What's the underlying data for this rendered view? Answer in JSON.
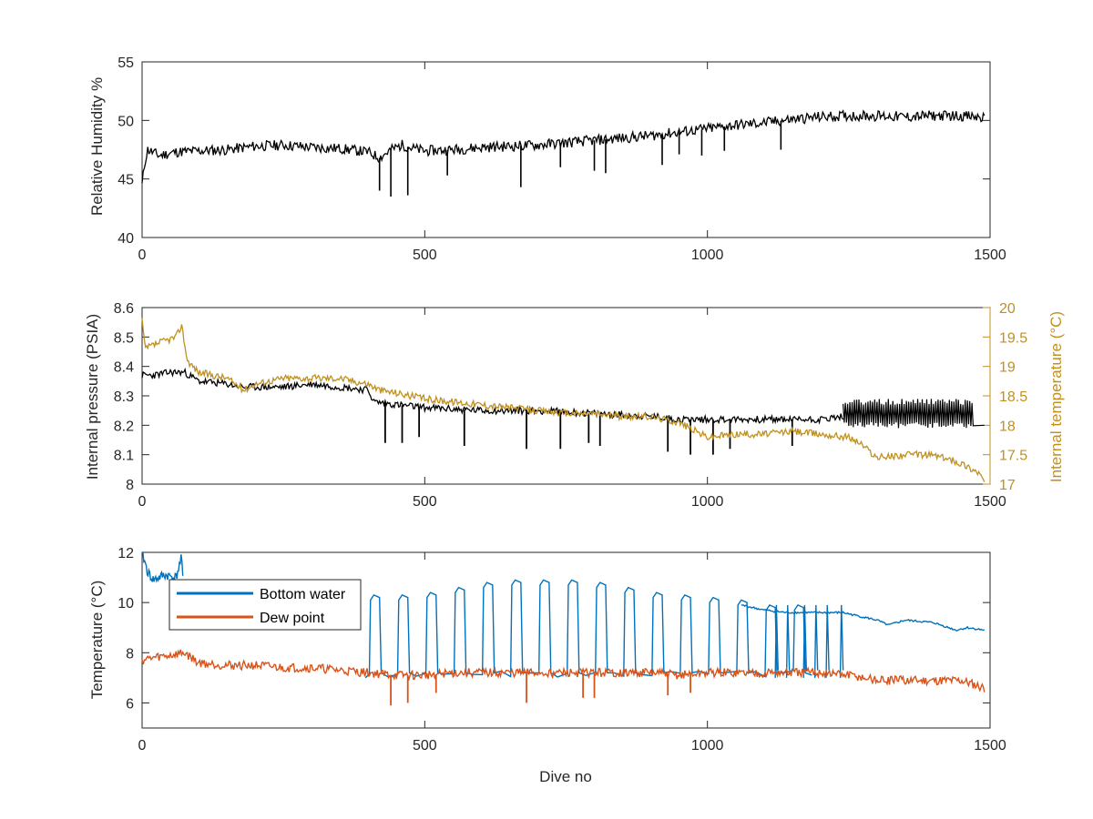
{
  "chart_data": [
    {
      "type": "line",
      "title": "",
      "xlabel": "",
      "ylabel": "Relative Humidity %",
      "xlim": [
        0,
        1500
      ],
      "ylim": [
        40,
        55
      ],
      "xticks": [
        "0",
        "500",
        "1000",
        "1500"
      ],
      "yticks": [
        "40",
        "45",
        "50",
        "55"
      ],
      "colors": {
        "rh": "#000000"
      },
      "series": [
        {
          "key": "rh",
          "x": [
            0,
            5,
            10,
            30,
            60,
            100,
            150,
            200,
            250,
            300,
            350,
            400,
            420,
            440,
            460,
            480,
            500,
            550,
            600,
            650,
            700,
            750,
            800,
            850,
            900,
            950,
            1000,
            1050,
            1100,
            1150,
            1200,
            1250,
            1300,
            1350,
            1400,
            1450,
            1490
          ],
          "y": [
            44.5,
            46.5,
            47.5,
            47.0,
            47.3,
            47.4,
            47.5,
            47.8,
            47.9,
            47.7,
            47.6,
            47.3,
            46.8,
            47.5,
            47.9,
            47.6,
            47.4,
            47.5,
            47.7,
            47.8,
            47.9,
            48.1,
            48.3,
            48.5,
            48.7,
            49.0,
            49.3,
            49.6,
            49.8,
            50.1,
            50.3,
            50.4,
            50.4,
            50.3,
            50.4,
            50.4,
            50.2
          ]
        }
      ],
      "dips": {
        "key": "rh",
        "x": [
          420,
          440,
          470,
          540,
          670,
          740,
          800,
          820,
          920,
          950,
          990,
          1030,
          1130
        ],
        "y": [
          44.0,
          43.5,
          43.6,
          45.3,
          44.3,
          46.0,
          45.7,
          45.5,
          46.2,
          47.1,
          47.0,
          47.4,
          47.5
        ]
      }
    },
    {
      "type": "line",
      "title": "",
      "xlabel": "",
      "ylabel": "Internal pressure (PSIA)",
      "y2label": "Internal temperature (°C)",
      "xlim": [
        0,
        1500
      ],
      "ylim": [
        8,
        8.6
      ],
      "y2lim": [
        17,
        20
      ],
      "xticks": [
        "0",
        "500",
        "1000",
        "1500"
      ],
      "yticks": [
        "8",
        "8.1",
        "8.2",
        "8.3",
        "8.4",
        "8.5",
        "8.6"
      ],
      "y2ticks": [
        "17",
        "17.5",
        "18",
        "18.5",
        "19",
        "19.5",
        "20"
      ],
      "colors": {
        "pressure": "#000000",
        "temperature": "#C09020",
        "temperature_axis": "#C09020"
      },
      "series": [
        {
          "key": "pressure",
          "axis": "left",
          "x": [
            0,
            20,
            50,
            75,
            100,
            150,
            180,
            250,
            300,
            350,
            400,
            410,
            450,
            500,
            600,
            700,
            800,
            900,
            950,
            1000,
            1100,
            1200,
            1240,
            1250,
            1300,
            1400,
            1470,
            1490
          ],
          "y": [
            8.37,
            8.37,
            8.38,
            8.38,
            8.35,
            8.34,
            8.33,
            8.33,
            8.34,
            8.33,
            8.32,
            8.28,
            8.27,
            8.26,
            8.25,
            8.25,
            8.24,
            8.23,
            8.22,
            8.22,
            8.22,
            8.22,
            8.23,
            8.26,
            8.25,
            8.25,
            8.24,
            8.2
          ]
        },
        {
          "key": "temperature",
          "axis": "right",
          "x": [
            0,
            5,
            30,
            60,
            70,
            80,
            100,
            150,
            180,
            200,
            250,
            300,
            350,
            400,
            420,
            450,
            500,
            550,
            600,
            650,
            700,
            750,
            800,
            850,
            900,
            950,
            1000,
            1050,
            1100,
            1150,
            1200,
            1250,
            1270,
            1300,
            1350,
            1400,
            1450,
            1480,
            1490
          ],
          "y": [
            19.8,
            19.3,
            19.4,
            19.5,
            19.7,
            19.1,
            18.9,
            18.8,
            18.6,
            18.7,
            18.8,
            18.8,
            18.8,
            18.7,
            18.6,
            18.55,
            18.45,
            18.4,
            18.35,
            18.3,
            18.25,
            18.2,
            18.2,
            18.15,
            18.15,
            18.05,
            17.8,
            17.85,
            17.85,
            17.9,
            17.85,
            17.8,
            17.7,
            17.45,
            17.5,
            17.5,
            17.35,
            17.2,
            17.05
          ]
        }
      ],
      "dips": {
        "key": "pressure",
        "x": [
          430,
          460,
          490,
          570,
          680,
          740,
          790,
          810,
          930,
          970,
          1010,
          1040,
          1150
        ],
        "y": [
          8.14,
          8.14,
          8.16,
          8.13,
          8.12,
          8.12,
          8.14,
          8.13,
          8.11,
          8.1,
          8.1,
          8.12,
          8.13
        ]
      },
      "annotations": [
        {
          "key": "pressure",
          "text": "",
          "kind": "oscillation",
          "x_range": [
            1240,
            1470
          ],
          "low": 8.19,
          "high": 8.29
        }
      ]
    },
    {
      "type": "line",
      "title": "",
      "xlabel": "Dive no",
      "ylabel": "Temperature (°C)",
      "xlim": [
        0,
        1500
      ],
      "ylim": [
        5,
        12
      ],
      "xticks": [
        "0",
        "500",
        "1000",
        "1500"
      ],
      "yticks": [
        "6",
        "8",
        "10",
        "12"
      ],
      "colors": {
        "bottom": "#0072BD",
        "dew": "#D95319"
      },
      "legend": {
        "placement": "top-left",
        "entries": [
          "Bottom water",
          "Dew point"
        ]
      },
      "series": [
        {
          "key": "bottom",
          "name": "Bottom water",
          "x": [
            0,
            10,
            20,
            40,
            60,
            70,
            72
          ],
          "y": [
            12.0,
            11.2,
            10.9,
            11.1,
            11.0,
            11.8,
            10.9
          ]
        },
        {
          "key": "dew",
          "name": "Dew point",
          "x": [
            0,
            20,
            50,
            75,
            100,
            150,
            200,
            250,
            300,
            350,
            400,
            450,
            500,
            550,
            600,
            650,
            700,
            750,
            800,
            850,
            900,
            950,
            1000,
            1050,
            1100,
            1150,
            1200,
            1250,
            1300,
            1350,
            1400,
            1450,
            1490
          ],
          "y": [
            7.7,
            7.8,
            7.9,
            8.0,
            7.6,
            7.5,
            7.5,
            7.4,
            7.4,
            7.3,
            7.2,
            7.1,
            7.1,
            7.2,
            7.2,
            7.2,
            7.2,
            7.2,
            7.2,
            7.2,
            7.2,
            7.1,
            7.2,
            7.2,
            7.2,
            7.2,
            7.2,
            7.1,
            6.9,
            6.9,
            6.9,
            6.9,
            6.6
          ]
        }
      ],
      "dips": {
        "key": "dew",
        "x": [
          440,
          470,
          520,
          680,
          780,
          800,
          930,
          970
        ],
        "y": [
          5.9,
          6.0,
          6.4,
          6.0,
          6.2,
          6.2,
          6.3,
          6.4
        ]
      },
      "cycles": {
        "key": "bottom",
        "low": 7.0,
        "high_x": [
          410,
          460,
          510,
          560,
          610,
          660,
          710,
          760,
          810,
          860,
          910,
          960,
          1010,
          1060,
          1110,
          1160
        ],
        "high_y": [
          10.3,
          10.3,
          10.4,
          10.6,
          10.8,
          10.9,
          10.9,
          10.9,
          10.8,
          10.6,
          10.4,
          10.3,
          10.2,
          10.1,
          9.9,
          9.9
        ]
      },
      "tail": {
        "key": "bottom",
        "x": [
          1060,
          1100,
          1140,
          1180,
          1240,
          1260,
          1300,
          1320,
          1350,
          1400,
          1440,
          1460,
          1490
        ],
        "y": [
          9.9,
          9.7,
          9.6,
          9.6,
          9.6,
          9.5,
          9.3,
          9.1,
          9.3,
          9.2,
          8.9,
          9.0,
          8.9
        ]
      },
      "dense_spikes": {
        "key": "bottom",
        "x": [
          1120,
          1140,
          1170,
          1190,
          1210,
          1235
        ],
        "low": 7.0,
        "high": 9.9
      }
    }
  ]
}
